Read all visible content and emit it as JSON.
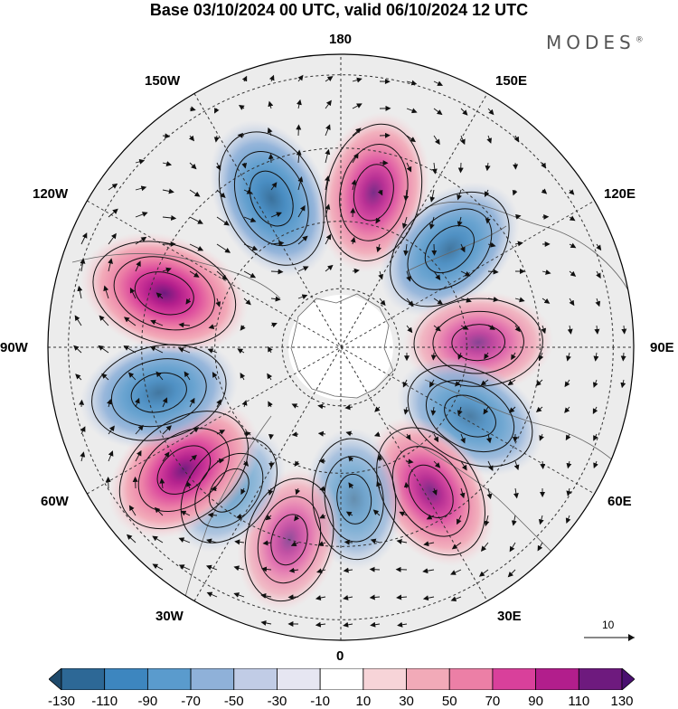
{
  "title": "Base 03/10/2024 00 UTC, valid 06/10/2024 12 UTC",
  "brand": "MODES",
  "brand_mark": "®",
  "longitudes": {
    "top": "180",
    "upper_right": "150E",
    "upper_left": "150W",
    "right_upper": "120E",
    "left_upper": "120W",
    "right": "90E",
    "left": "90W",
    "right_lower": "60E",
    "left_lower": "60W",
    "lower_right": "30E",
    "lower_left": "30W",
    "bottom": "0"
  },
  "vector_reference": {
    "value": "10"
  },
  "colorbar": {
    "labels": [
      "-130",
      "-110",
      "-90",
      "-70",
      "-50",
      "-30",
      "-10",
      "10",
      "30",
      "50",
      "70",
      "90",
      "110",
      "130"
    ],
    "colors": [
      "#1f4a6b",
      "#2d6896",
      "#3d86bf",
      "#5a9bcd",
      "#8fb1d9",
      "#c1cce6",
      "#e6e6f2",
      "#ffffff",
      "#f7d4d8",
      "#f2aab8",
      "#ec7fa6",
      "#d9409b",
      "#b21e8c",
      "#6e1a7e",
      "#4a1070"
    ]
  },
  "centers": [
    {
      "kind": "low",
      "angle": -25,
      "r": 0.56,
      "int": 0.85
    },
    {
      "kind": "high",
      "angle": 12,
      "r": 0.54,
      "int": 0.8
    },
    {
      "kind": "low",
      "angle": 48,
      "r": 0.5,
      "int": 0.75
    },
    {
      "kind": "high",
      "angle": 88,
      "r": 0.47,
      "int": 0.55
    },
    {
      "kind": "low",
      "angle": 118,
      "r": 0.5,
      "int": 0.65
    },
    {
      "kind": "high",
      "angle": 148,
      "r": 0.58,
      "int": 0.8
    },
    {
      "kind": "low",
      "angle": 175,
      "r": 0.52,
      "int": 0.35
    },
    {
      "kind": "high",
      "angle": 195,
      "r": 0.68,
      "int": 0.45
    },
    {
      "kind": "low",
      "angle": 218,
      "r": 0.62,
      "int": 0.25
    },
    {
      "kind": "high",
      "angle": 232,
      "r": 0.68,
      "int": 0.95
    },
    {
      "kind": "low",
      "angle": 256,
      "r": 0.64,
      "int": 0.75
    },
    {
      "kind": "high",
      "angle": 287,
      "r": 0.63,
      "int": 1.0
    }
  ]
}
